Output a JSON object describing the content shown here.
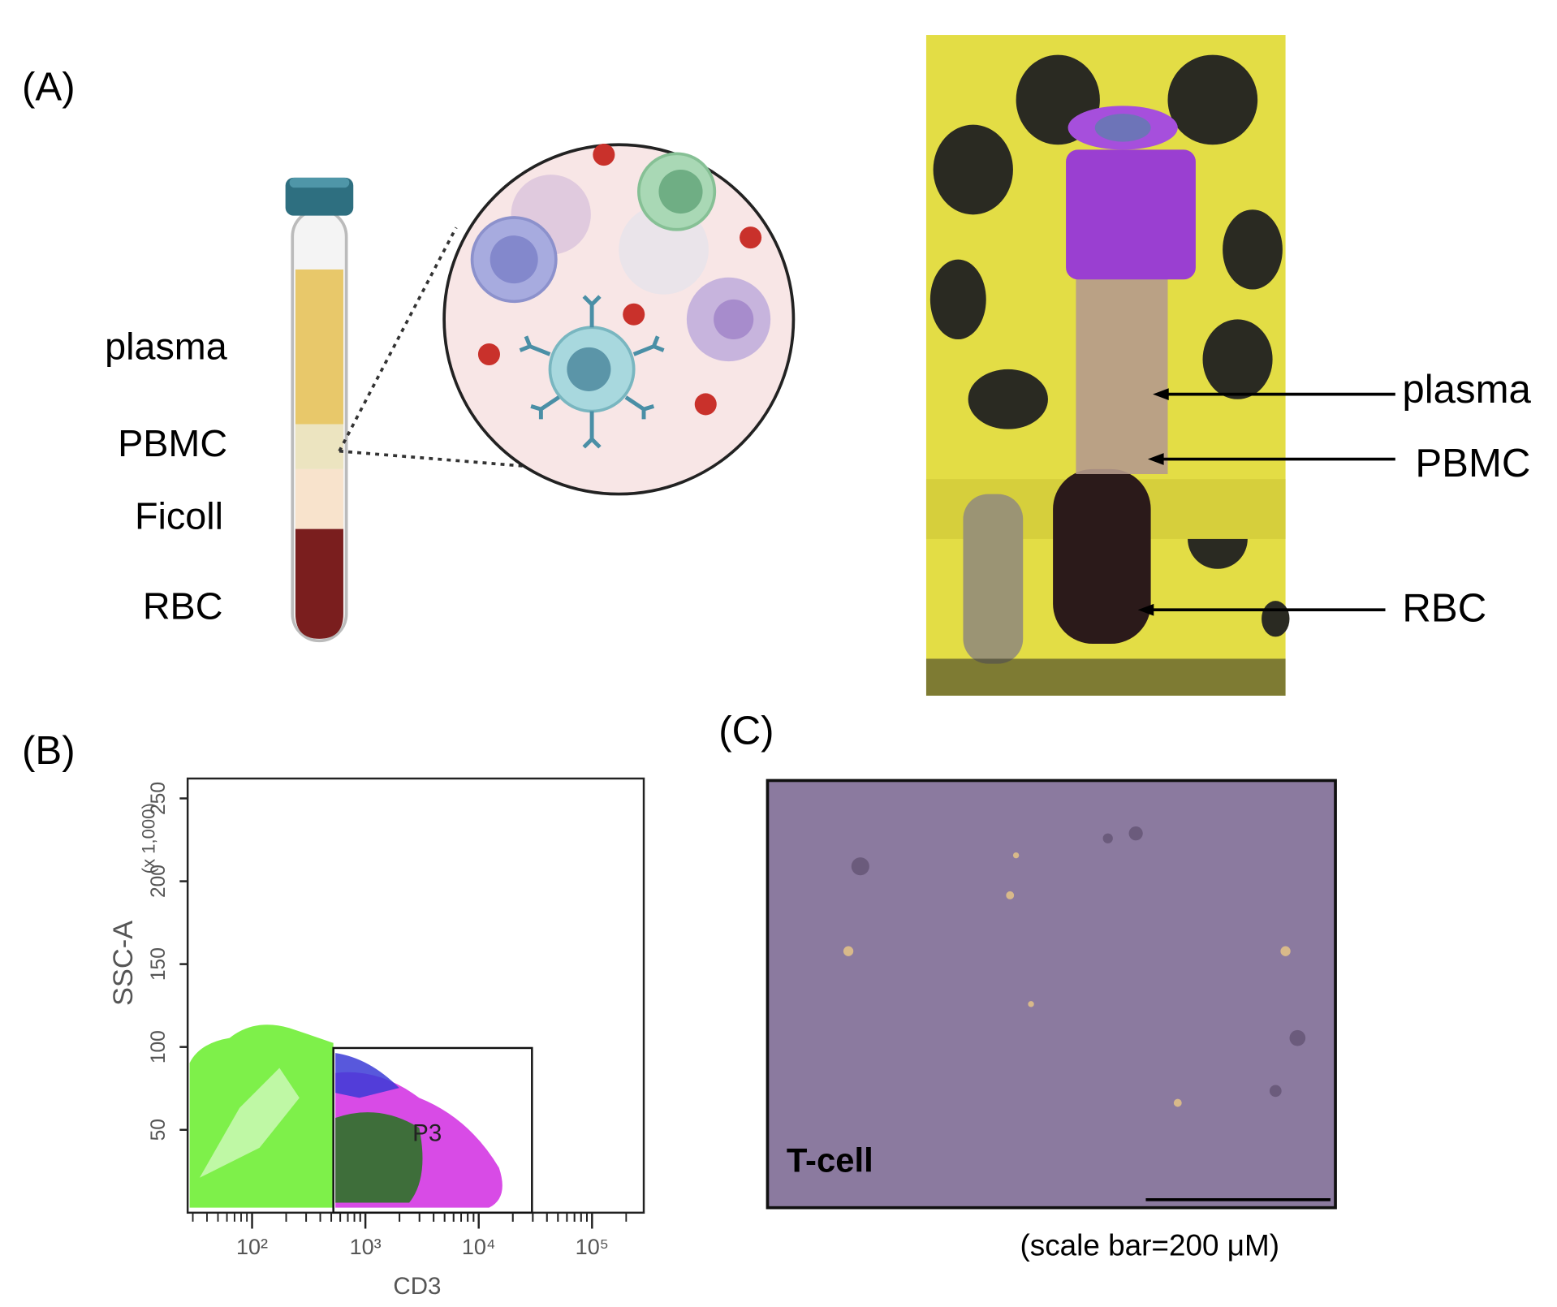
{
  "panels": {
    "A": {
      "label": "(A)",
      "tube_layers": [
        "plasma",
        "PBMC",
        "Ficoll",
        "RBC"
      ],
      "photo_labels": [
        "plasma",
        "PBMC",
        "RBC"
      ]
    },
    "B": {
      "label": "(B)",
      "flow_plot": {
        "x_label": "CD3",
        "y_label": "SSC-A",
        "y_unit": "(x 1,000)",
        "gate": "P3",
        "xscale": "log",
        "xlim": [
          27,
          286000
        ],
        "ylim": [
          0,
          262
        ],
        "xticks": [
          {
            "value": 100,
            "label": "10²"
          },
          {
            "value": 1000,
            "label": "10³"
          },
          {
            "value": 10000,
            "label": "10⁴"
          },
          {
            "value": 100000,
            "label": "10⁵"
          }
        ],
        "yticks": [
          50,
          100,
          150,
          200,
          250
        ]
      }
    },
    "C": {
      "label": "(C)",
      "image_label": "T-cell",
      "caption": "(scale bar=200 μM)"
    }
  }
}
